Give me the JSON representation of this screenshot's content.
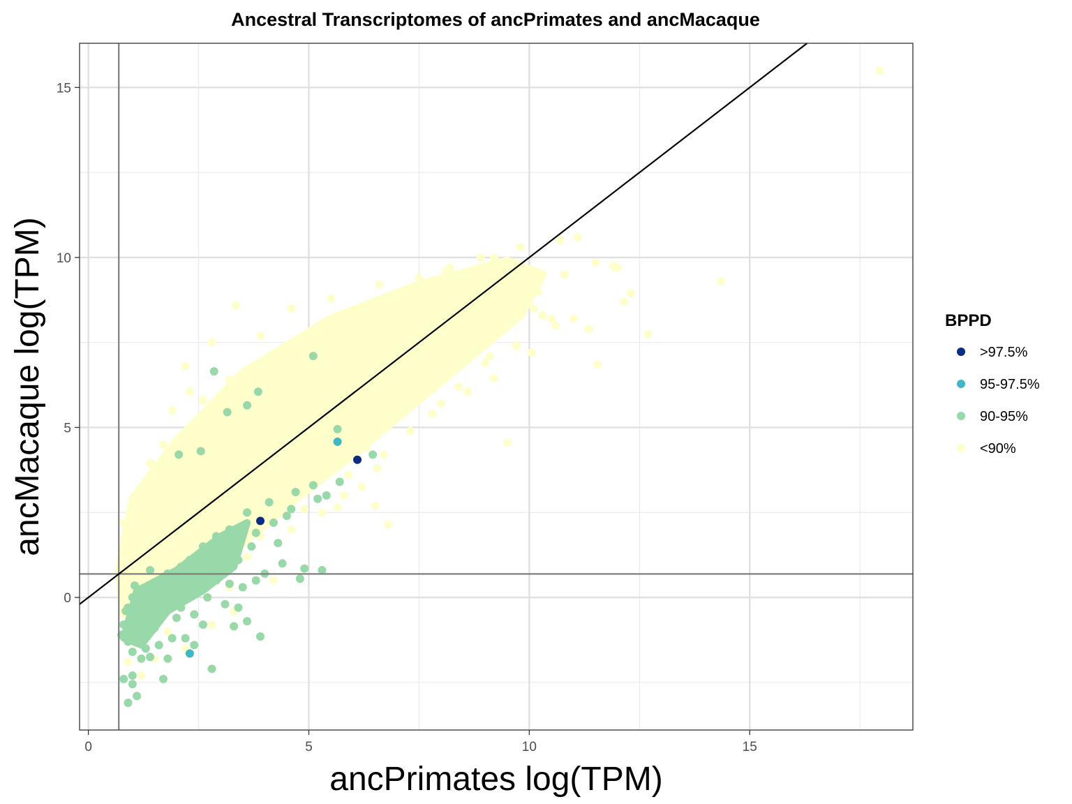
{
  "chart_data": {
    "type": "scatter",
    "title": "Ancestral Transcriptomes of ancPrimates and ancMacaque",
    "xlabel": "ancPrimates log(TPM)",
    "ylabel": "ancMacaque log(TPM)",
    "xlim": [
      -0.2,
      18.7
    ],
    "ylim": [
      -3.9,
      16.3
    ],
    "x_ticks": [
      0,
      5,
      10,
      15
    ],
    "y_ticks": [
      0,
      5,
      10,
      15
    ],
    "grid": true,
    "reference_lines": {
      "identity_line": {
        "slope": 1,
        "intercept": 0
      },
      "vertical_x": 0.69,
      "horizontal_y": 0.69
    },
    "legend": {
      "title": "BPPD",
      "position": "right",
      "entries": [
        "<90%",
        "90-95%",
        "95-97.5%",
        ">97.5%"
      ]
    },
    "series": [
      {
        "name": "<90%",
        "color": "#ffffcc",
        "points": [
          [
            17.95,
            15.5
          ],
          [
            14.35,
            9.3
          ],
          [
            12.7,
            7.75
          ],
          [
            12.3,
            8.95
          ],
          [
            12.15,
            8.7
          ],
          [
            12.0,
            9.7
          ],
          [
            11.9,
            9.75
          ],
          [
            11.55,
            6.85
          ],
          [
            11.35,
            7.9
          ],
          [
            11.5,
            9.85
          ],
          [
            11.1,
            10.6
          ],
          [
            10.7,
            10.5
          ],
          [
            10.5,
            8.2
          ],
          [
            10.3,
            8.3
          ],
          [
            10.05,
            7.2
          ],
          [
            9.9,
            8.6
          ],
          [
            9.5,
            4.55
          ],
          [
            9.2,
            6.45
          ],
          [
            9.0,
            6.9
          ],
          [
            8.6,
            6.05
          ],
          [
            8.0,
            5.7
          ],
          [
            7.2,
            5.5
          ],
          [
            6.7,
            4.2
          ],
          [
            6.55,
            3.8
          ],
          [
            6.8,
            2.15
          ],
          [
            6.5,
            2.7
          ],
          [
            6.2,
            3.25
          ],
          [
            5.65,
            2.65
          ],
          [
            5.8,
            3.0
          ],
          [
            4.5,
            3.5
          ],
          [
            4.2,
            2.3
          ],
          [
            3.9,
            1.8
          ],
          [
            3.35,
            8.6
          ],
          [
            3.9,
            7.7
          ],
          [
            2.8,
            7.5
          ],
          [
            2.2,
            6.8
          ],
          [
            2.3,
            6.05
          ],
          [
            1.9,
            5.5
          ],
          [
            1.7,
            4.5
          ],
          [
            1.4,
            3.95
          ],
          [
            3.2,
            6.4
          ],
          [
            2.6,
            5.8
          ],
          [
            4.6,
            8.5
          ],
          [
            5.5,
            8.8
          ],
          [
            6.6,
            9.2
          ],
          [
            7.5,
            9.4
          ],
          [
            8.2,
            9.7
          ],
          [
            9.2,
            10.0
          ],
          [
            9.8,
            10.3
          ],
          [
            1.0,
            2.7
          ],
          [
            0.8,
            2.2
          ],
          [
            1.2,
            1.6
          ],
          [
            2.5,
            1.0
          ],
          [
            3.2,
            0.3
          ],
          [
            4.2,
            0.5
          ],
          [
            3.6,
            1.2
          ],
          [
            2.8,
            -0.8
          ],
          [
            2.2,
            -1.5
          ],
          [
            1.5,
            -1.8
          ],
          [
            1.2,
            -2.3
          ],
          [
            0.9,
            -1.9
          ],
          [
            1.8,
            -1.0
          ],
          [
            3.3,
            -0.4
          ],
          [
            2.0,
            0.3
          ],
          [
            1.6,
            -0.1
          ],
          [
            1.1,
            0.2
          ],
          [
            1.3,
            1.1
          ],
          [
            1.9,
            1.4
          ],
          [
            2.4,
            1.9
          ],
          [
            2.9,
            2.4
          ],
          [
            3.3,
            3.4
          ],
          [
            3.8,
            4.4
          ],
          [
            4.4,
            5.5
          ],
          [
            5.0,
            6.3
          ],
          [
            5.5,
            7.2
          ],
          [
            6.2,
            7.8
          ],
          [
            6.8,
            8.4
          ],
          [
            7.4,
            8.9
          ],
          [
            8.0,
            9.2
          ],
          [
            8.6,
            9.5
          ],
          [
            9.2,
            9.7
          ],
          [
            5.1,
            3.9
          ],
          [
            5.6,
            4.6
          ],
          [
            6.1,
            5.1
          ],
          [
            6.8,
            5.6
          ],
          [
            7.4,
            6.3
          ],
          [
            7.9,
            6.9
          ],
          [
            8.5,
            7.5
          ],
          [
            9.0,
            8.0
          ],
          [
            9.6,
            8.6
          ],
          [
            10.2,
            9.0
          ],
          [
            10.8,
            9.5
          ],
          [
            4.0,
            2.8
          ],
          [
            4.5,
            3.3
          ],
          [
            3.0,
            1.6
          ],
          [
            2.6,
            3.6
          ],
          [
            3.5,
            5.0
          ],
          [
            4.1,
            6.2
          ],
          [
            4.8,
            7.3
          ],
          [
            5.8,
            8.3
          ],
          [
            7.0,
            8.9
          ],
          [
            8.1,
            9.6
          ],
          [
            8.9,
            10.0
          ],
          [
            1.9,
            2.4
          ],
          [
            2.3,
            2.9
          ],
          [
            2.7,
            3.3
          ],
          [
            3.1,
            3.8
          ],
          [
            3.6,
            4.2
          ],
          [
            4.3,
            4.8
          ],
          [
            4.9,
            5.4
          ],
          [
            5.4,
            5.9
          ],
          [
            6.0,
            6.6
          ],
          [
            6.5,
            7.0
          ],
          [
            7.1,
            7.5
          ],
          [
            7.7,
            8.0
          ],
          [
            8.3,
            8.5
          ],
          [
            8.8,
            8.9
          ],
          [
            9.4,
            9.3
          ],
          [
            10.0,
            9.5
          ],
          [
            1.3,
            3.3
          ],
          [
            1.6,
            3.0
          ],
          [
            2.0,
            4.0
          ],
          [
            2.4,
            4.6
          ],
          [
            2.9,
            5.2
          ],
          [
            3.4,
            5.8
          ],
          [
            3.9,
            6.5
          ],
          [
            4.5,
            7.0
          ],
          [
            5.2,
            7.6
          ],
          [
            6.0,
            8.1
          ],
          [
            5.1,
            4.4
          ],
          [
            5.7,
            5.3
          ],
          [
            6.4,
            6.1
          ],
          [
            7.0,
            6.9
          ],
          [
            7.6,
            7.4
          ],
          [
            8.2,
            8.0
          ],
          [
            8.8,
            8.3
          ],
          [
            9.4,
            8.8
          ],
          [
            10.1,
            8.5
          ],
          [
            10.6,
            8.0
          ],
          [
            11.0,
            8.2
          ],
          [
            4.6,
            2.0
          ],
          [
            4.9,
            2.6
          ],
          [
            5.3,
            2.5
          ],
          [
            5.9,
            3.6
          ],
          [
            6.3,
            4.4
          ],
          [
            7.3,
            4.9
          ],
          [
            7.8,
            5.4
          ],
          [
            8.4,
            6.2
          ],
          [
            9.1,
            7.1
          ],
          [
            9.7,
            7.4
          ]
        ]
      },
      {
        "name": "90-95%",
        "color": "#99d8a8",
        "points": [
          [
            0.9,
            -3.1
          ],
          [
            1.1,
            -2.9
          ],
          [
            1.0,
            -2.3
          ],
          [
            0.8,
            -2.4
          ],
          [
            1.0,
            -2.55
          ],
          [
            1.7,
            -2.4
          ],
          [
            2.8,
            -2.1
          ],
          [
            3.9,
            -1.15
          ],
          [
            3.3,
            -0.85
          ],
          [
            3.6,
            -0.7
          ],
          [
            2.6,
            -0.8
          ],
          [
            2.2,
            -1.2
          ],
          [
            1.9,
            -1.2
          ],
          [
            1.8,
            -1.8
          ],
          [
            1.4,
            -1.75
          ],
          [
            1.3,
            -1.5
          ],
          [
            1.0,
            -1.6
          ],
          [
            0.9,
            -1.3
          ],
          [
            0.75,
            -1.1
          ],
          [
            0.8,
            -0.8
          ],
          [
            1.2,
            -1.0
          ],
          [
            1.5,
            -0.9
          ],
          [
            1.1,
            -0.5
          ],
          [
            0.9,
            -0.3
          ],
          [
            1.0,
            0.0
          ],
          [
            1.3,
            0.2
          ],
          [
            1.6,
            0.3
          ],
          [
            2.0,
            0.5
          ],
          [
            2.3,
            0.4
          ],
          [
            2.6,
            0.7
          ],
          [
            2.9,
            0.5
          ],
          [
            3.2,
            0.4
          ],
          [
            3.5,
            0.3
          ],
          [
            3.8,
            0.5
          ],
          [
            3.4,
            -0.3
          ],
          [
            3.1,
            -0.2
          ],
          [
            2.7,
            0.0
          ],
          [
            2.4,
            -0.5
          ],
          [
            2.1,
            -0.3
          ],
          [
            1.8,
            -0.1
          ],
          [
            1.5,
            -0.3
          ],
          [
            1.2,
            -0.2
          ],
          [
            1.8,
            0.7
          ],
          [
            2.1,
            0.9
          ],
          [
            2.5,
            1.0
          ],
          [
            2.8,
            1.2
          ],
          [
            3.1,
            1.3
          ],
          [
            3.4,
            1.6
          ],
          [
            3.8,
            1.9
          ],
          [
            4.2,
            2.2
          ],
          [
            4.5,
            2.4
          ],
          [
            4.1,
            2.8
          ],
          [
            3.6,
            2.5
          ],
          [
            3.2,
            2.0
          ],
          [
            2.9,
            1.8
          ],
          [
            2.6,
            1.5
          ],
          [
            2.3,
            1.1
          ],
          [
            4.7,
            3.1
          ],
          [
            5.1,
            3.3
          ],
          [
            5.4,
            3.0
          ],
          [
            5.7,
            3.4
          ],
          [
            5.2,
            2.9
          ],
          [
            4.6,
            2.6
          ],
          [
            4.8,
            0.55
          ],
          [
            5.3,
            0.8
          ],
          [
            4.9,
            0.85
          ],
          [
            4.0,
            0.7
          ],
          [
            3.7,
            1.5
          ],
          [
            3.4,
            1.1
          ],
          [
            4.4,
            1.0
          ],
          [
            5.65,
            4.95
          ],
          [
            6.45,
            4.2
          ],
          [
            5.1,
            7.1
          ],
          [
            2.85,
            6.65
          ],
          [
            3.15,
            5.45
          ],
          [
            3.6,
            5.65
          ],
          [
            3.85,
            6.05
          ],
          [
            2.55,
            4.3
          ],
          [
            2.05,
            4.2
          ],
          [
            2.2,
            0.2
          ],
          [
            1.7,
            0.6
          ],
          [
            1.4,
            0.8
          ],
          [
            2.0,
            -0.6
          ],
          [
            2.4,
            -1.4
          ],
          [
            1.6,
            -1.4
          ],
          [
            1.2,
            -1.8
          ],
          [
            0.85,
            -0.4
          ],
          [
            1.05,
            0.35
          ],
          [
            3.0,
            1.0
          ],
          [
            3.3,
            1.4
          ],
          [
            4.3,
            1.6
          ]
        ]
      },
      {
        "name": "95-97.5%",
        "color": "#41b6c4",
        "points": [
          [
            5.65,
            4.58
          ],
          [
            2.3,
            -1.65
          ]
        ]
      },
      {
        "name": ">97.5%",
        "color": "#0c2c84",
        "points": [
          [
            6.1,
            4.05
          ],
          [
            3.9,
            2.25
          ]
        ]
      }
    ]
  }
}
